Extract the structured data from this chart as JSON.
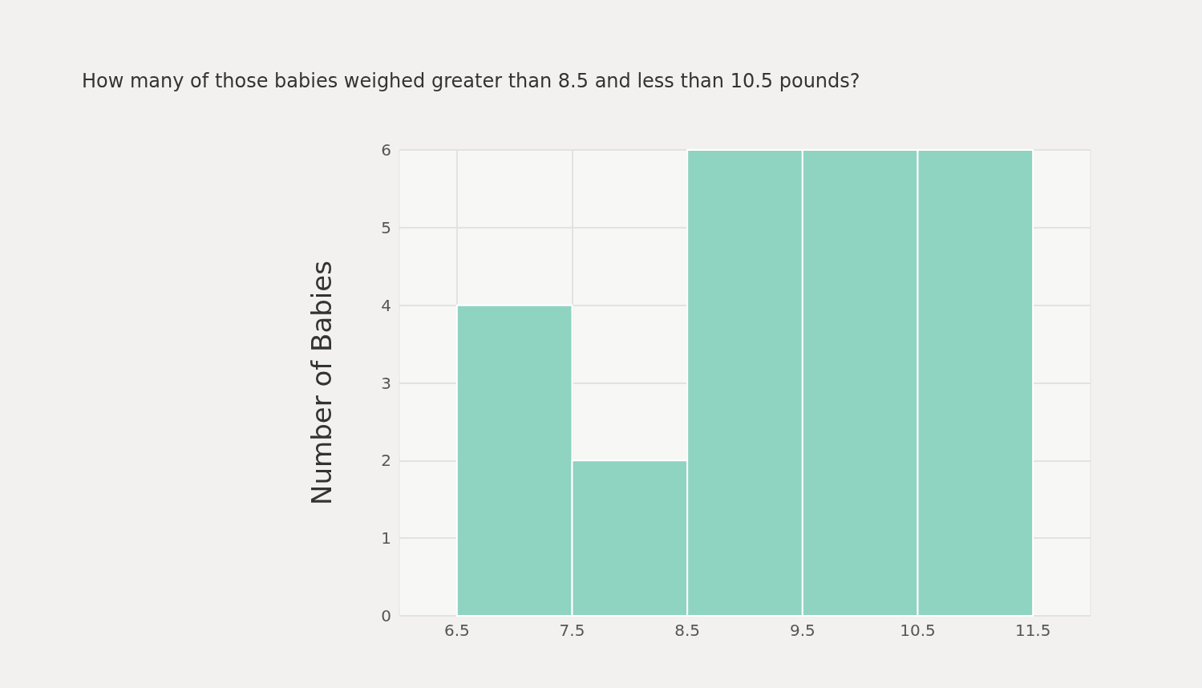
{
  "chart_data": {
    "type": "histogram",
    "title": "How many of those babies weighed greater than 8.5 and less than 10.5 pounds?",
    "ylabel": "Number of Babies",
    "bins": [
      6.5,
      7.5,
      8.5,
      9.5,
      10.5,
      11.5
    ],
    "values": [
      4,
      2,
      6,
      6,
      6
    ],
    "color": "#8fd3c1",
    "xlim": [
      6,
      12
    ],
    "xticks": [
      6.5,
      7.5,
      8.5,
      9.5,
      10.5,
      11.5
    ],
    "ylim": [
      0,
      6
    ],
    "yticks": [
      0,
      1,
      2,
      3,
      4,
      5,
      6
    ],
    "grid": true
  }
}
